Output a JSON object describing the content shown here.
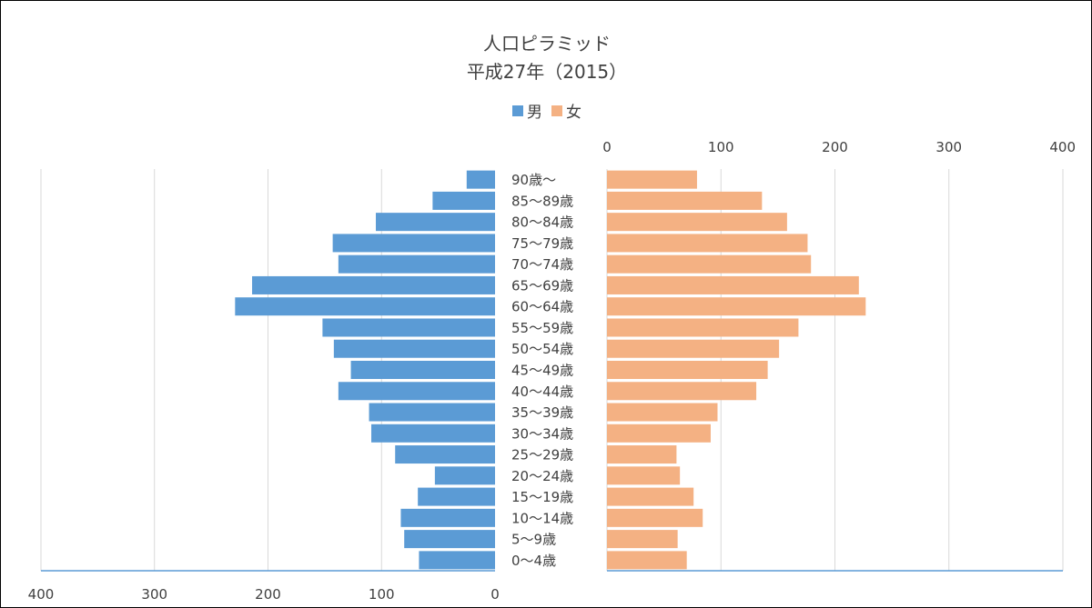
{
  "chart_data": {
    "type": "bar",
    "title": "人口ピラミッド",
    "subtitle": "平成27年（2015）",
    "categories": [
      "90歳～",
      "85～89歳",
      "80～84歳",
      "75～79歳",
      "70～74歳",
      "65～69歳",
      "60～64歳",
      "55～59歳",
      "50～54歳",
      "45～49歳",
      "40～44歳",
      "35～39歳",
      "30～34歳",
      "25～29歳",
      "20～24歳",
      "15～19歳",
      "10～14歳",
      "5～9歳",
      "0～4歳"
    ],
    "series": [
      {
        "name": "男",
        "color": "#5B9BD5",
        "values": [
          25,
          55,
          105,
          143,
          138,
          214,
          229,
          152,
          142,
          127,
          138,
          111,
          109,
          88,
          53,
          68,
          83,
          80,
          67
        ]
      },
      {
        "name": "女",
        "color": "#F4B183",
        "values": [
          79,
          136,
          158,
          176,
          179,
          221,
          227,
          168,
          151,
          141,
          131,
          97,
          91,
          61,
          64,
          76,
          84,
          62,
          70
        ]
      }
    ],
    "left_axis": {
      "min": 0,
      "max": 400,
      "ticks": [
        400,
        300,
        200,
        100,
        0
      ],
      "reversed": true
    },
    "right_axis": {
      "min": 0,
      "max": 400,
      "ticks": [
        0,
        100,
        200,
        300,
        400
      ]
    },
    "grid": true,
    "legend_position": "top-center"
  }
}
